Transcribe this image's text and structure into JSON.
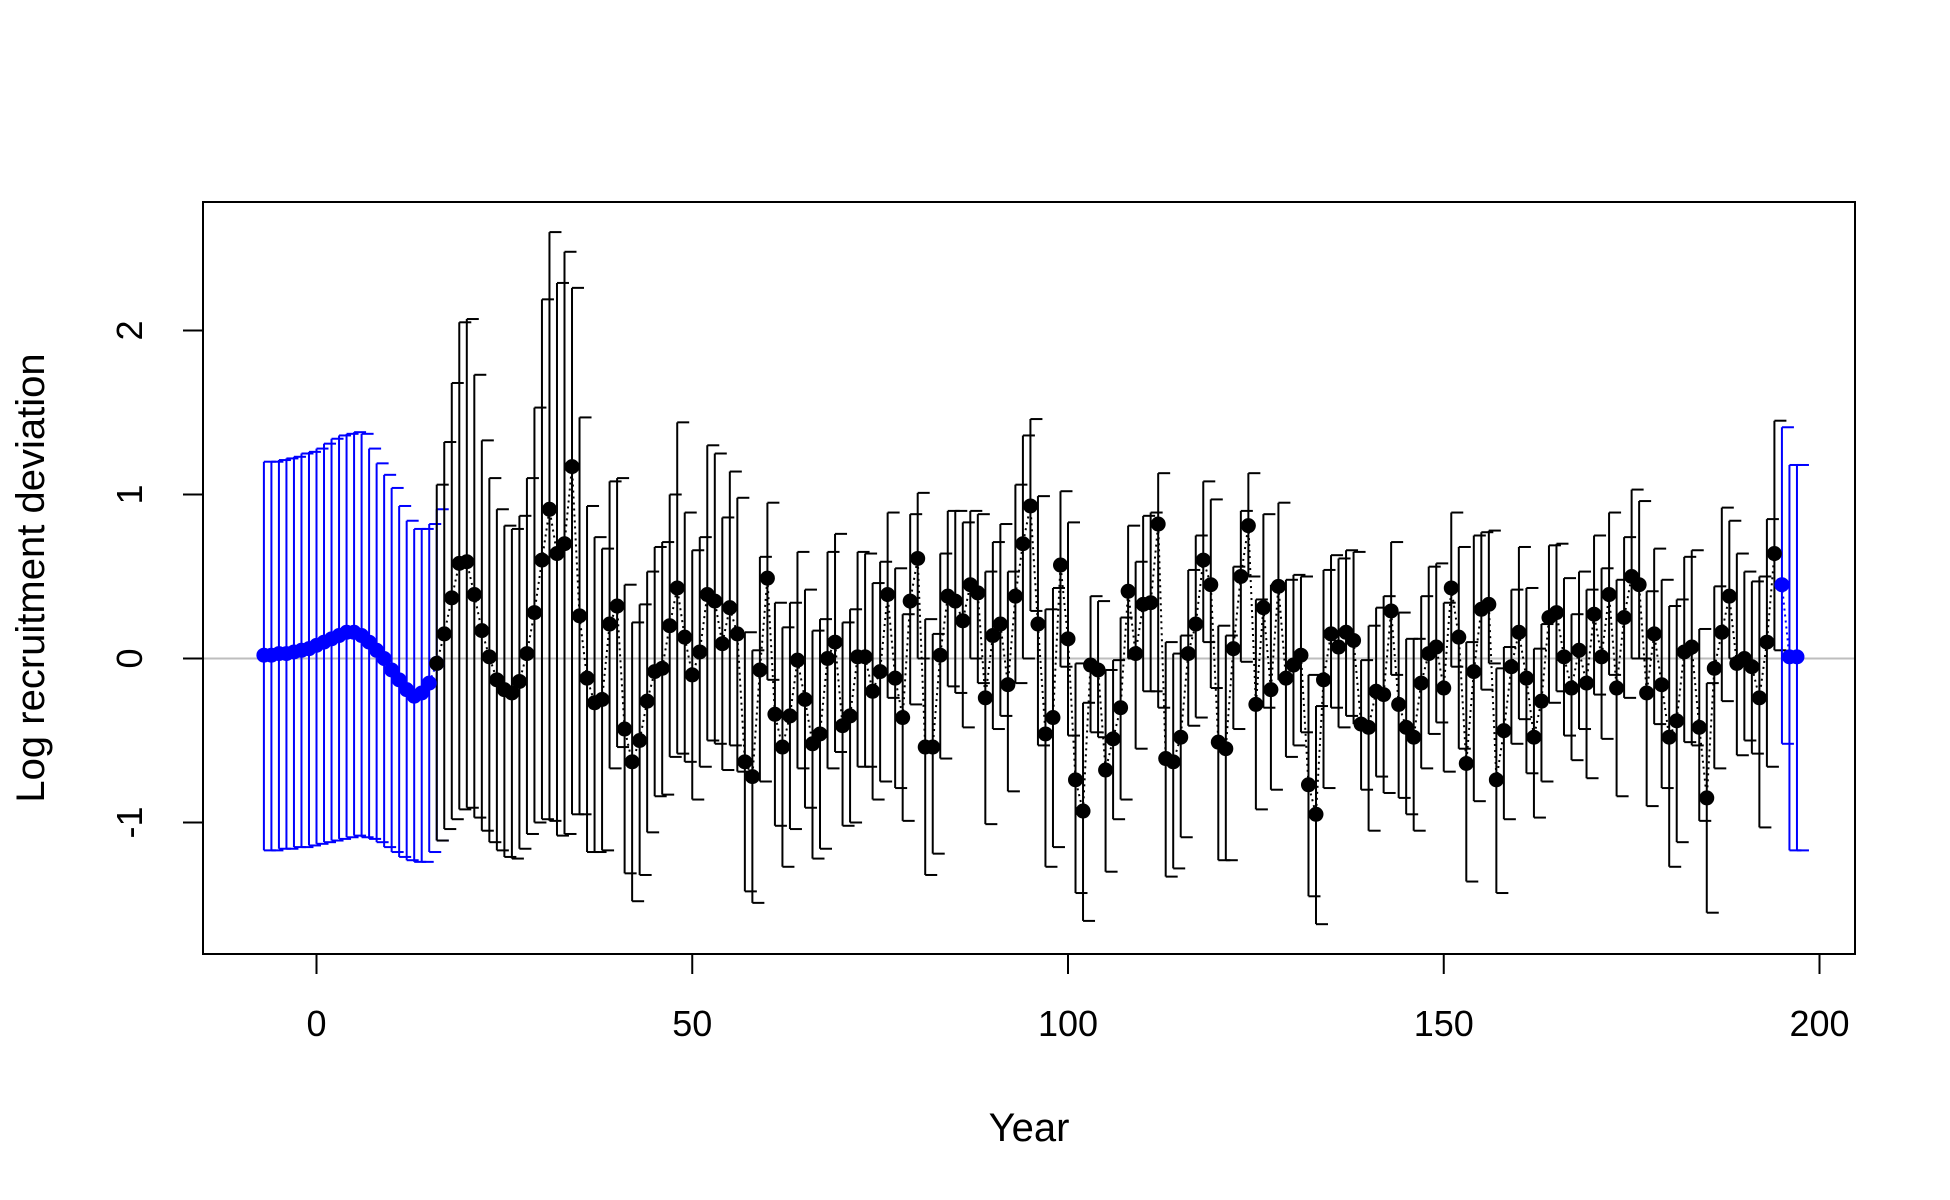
{
  "chart_data": {
    "type": "scatter",
    "title": "",
    "xlabel": "Year",
    "ylabel": "Log recruitment deviation",
    "xlim": [
      -15,
      205
    ],
    "ylim": [
      -1.8,
      2.8
    ],
    "x_ticks": [
      "0",
      "50",
      "100",
      "150",
      "200"
    ],
    "y_ticks": [
      "-1",
      "0",
      "1",
      "2"
    ],
    "reference_line": 0,
    "grid": false,
    "legend": "none",
    "colors": {
      "main": "#000000",
      "early_late": "#0000ff",
      "zero_line": "#bebebe"
    },
    "series": [
      {
        "part": "early",
        "x": [
          -7,
          -6,
          -5,
          -4,
          -3,
          -2,
          -1,
          0,
          1,
          2,
          3,
          4,
          5,
          6,
          7,
          8,
          9,
          10,
          11,
          12,
          13,
          14,
          15,
          16
        ],
        "y": [
          0.02,
          0.02,
          0.03,
          0.03,
          0.04,
          0.05,
          0.06,
          0.08,
          0.1,
          0.12,
          0.14,
          0.16,
          0.16,
          0.14,
          0.1,
          0.05,
          0.0,
          -0.07,
          -0.13,
          -0.19,
          -0.23,
          -0.21,
          -0.15,
          -0.03
        ],
        "lower": [
          -1.17,
          -1.17,
          -1.16,
          -1.16,
          -1.15,
          -1.15,
          -1.14,
          -1.13,
          -1.12,
          -1.11,
          -1.1,
          -1.09,
          -1.08,
          -1.09,
          -1.1,
          -1.12,
          -1.15,
          -1.18,
          -1.21,
          -1.23,
          -1.24,
          -1.24,
          -1.18,
          -1.11
        ],
        "upper": [
          1.2,
          1.2,
          1.21,
          1.22,
          1.23,
          1.25,
          1.26,
          1.28,
          1.31,
          1.34,
          1.36,
          1.37,
          1.38,
          1.37,
          1.28,
          1.19,
          1.12,
          1.04,
          0.93,
          0.84,
          0.79,
          0.79,
          0.82,
          0.91
        ]
      },
      {
        "part": "main",
        "x": [
          16,
          17,
          18,
          19,
          20,
          21,
          22,
          23,
          24,
          25,
          26,
          27,
          28,
          29,
          30,
          31,
          32,
          33,
          34,
          35,
          36,
          37,
          38,
          39,
          40,
          41,
          42,
          43,
          44,
          45,
          46,
          47,
          48,
          49,
          50,
          51,
          52,
          53,
          54,
          55,
          56,
          57,
          58,
          59,
          60,
          61,
          62,
          63,
          64,
          65,
          66,
          67,
          68,
          69,
          70,
          71,
          72,
          73,
          74,
          75,
          76,
          77,
          78,
          79,
          80,
          81,
          82,
          83,
          84,
          85,
          86,
          87,
          88,
          89,
          90,
          91,
          92,
          93,
          94,
          95,
          96,
          97,
          98,
          99,
          100,
          101,
          102,
          103,
          104,
          105,
          106,
          107,
          108,
          109,
          110,
          111,
          112,
          113,
          114,
          115,
          116,
          117,
          118,
          119,
          120,
          121,
          122,
          123,
          124,
          125,
          126,
          127,
          128,
          129,
          130,
          131,
          132,
          133,
          134,
          135,
          136,
          137,
          138,
          139,
          140,
          141,
          142,
          143,
          144,
          145,
          146,
          147,
          148,
          149,
          150,
          151,
          152,
          153,
          154,
          155,
          156,
          157,
          158,
          159,
          160,
          161,
          162,
          163,
          164,
          165,
          166,
          167,
          168,
          169,
          170,
          171,
          172,
          173,
          174,
          175,
          176,
          177,
          178,
          179,
          180,
          181,
          182,
          183,
          184,
          185,
          186,
          187,
          188,
          189,
          190,
          191,
          192,
          193,
          194
        ],
        "y": [
          -0.03,
          0.15,
          0.37,
          0.58,
          0.59,
          0.39,
          0.17,
          0.01,
          -0.13,
          -0.19,
          -0.21,
          -0.14,
          0.03,
          0.28,
          0.6,
          0.91,
          0.64,
          0.7,
          1.17,
          0.26,
          -0.12,
          -0.27,
          -0.25,
          0.21,
          0.32,
          -0.43,
          -0.63,
          -0.5,
          -0.26,
          -0.08,
          -0.06,
          0.2,
          0.43,
          0.13,
          -0.1,
          0.04,
          0.39,
          0.35,
          0.09,
          0.31,
          0.15,
          -0.63,
          -0.72,
          -0.07,
          0.49,
          -0.34,
          -0.54,
          -0.35,
          -0.01,
          -0.25,
          -0.52,
          -0.46,
          0.0,
          0.1,
          -0.41,
          -0.35,
          0.01,
          0.01,
          -0.2,
          -0.08,
          0.39,
          -0.12,
          -0.36,
          0.35,
          0.61,
          -0.54,
          -0.54,
          0.02,
          0.38,
          0.35,
          0.23,
          0.45,
          0.4,
          -0.24,
          0.14,
          0.21,
          -0.16,
          0.38,
          0.7,
          0.93,
          0.21,
          -0.46,
          -0.36,
          0.57,
          0.12,
          -0.74,
          -0.93,
          -0.04,
          -0.07,
          -0.68,
          -0.49,
          -0.3,
          0.41,
          0.03,
          0.33,
          0.34,
          0.82,
          -0.61,
          -0.63,
          -0.48,
          0.03,
          0.21,
          0.6,
          0.45,
          -0.51,
          -0.55,
          0.06,
          0.5,
          0.81,
          -0.28,
          0.31,
          -0.19,
          0.44,
          -0.12,
          -0.04,
          0.02,
          -0.77,
          -0.95,
          -0.13,
          0.15,
          0.07,
          0.16,
          0.11,
          -0.4,
          -0.42,
          -0.2,
          -0.22,
          0.29,
          -0.28,
          -0.42,
          -0.48,
          -0.15,
          0.03,
          0.07,
          -0.18,
          0.43,
          0.13,
          -0.64,
          -0.08,
          0.3,
          0.33,
          -0.74,
          -0.44,
          -0.05,
          0.16,
          -0.12,
          -0.48,
          -0.26,
          0.25,
          0.28,
          0.01,
          -0.18,
          0.05,
          -0.15,
          0.27,
          0.01,
          0.39,
          -0.18,
          0.25,
          0.5,
          0.45,
          -0.21,
          0.15,
          -0.16,
          -0.48,
          -0.38,
          0.04,
          0.07,
          -0.42,
          -0.85,
          -0.06,
          0.16,
          0.38,
          -0.03,
          0.0,
          -0.05,
          -0.24,
          0.1,
          0.64
        ],
        "lower": [
          -1.11,
          -1.04,
          -0.98,
          -0.92,
          -0.91,
          -0.97,
          -1.05,
          -1.12,
          -1.17,
          -1.21,
          -1.22,
          -1.16,
          -1.07,
          -1.0,
          -0.98,
          -0.99,
          -1.08,
          -1.07,
          -0.95,
          -0.95,
          -1.18,
          -1.18,
          -1.17,
          -0.67,
          -0.54,
          -1.31,
          -1.48,
          -1.32,
          -1.06,
          -0.84,
          -0.83,
          -0.6,
          -0.58,
          -0.63,
          -0.86,
          -0.66,
          -0.5,
          -0.52,
          -0.68,
          -0.53,
          -0.69,
          -1.42,
          -1.49,
          -0.75,
          -0.13,
          -1.02,
          -1.27,
          -1.04,
          -0.67,
          -0.91,
          -1.22,
          -1.16,
          -0.67,
          -0.57,
          -1.02,
          -1.0,
          -0.66,
          -0.66,
          -0.86,
          -0.75,
          -0.24,
          -0.79,
          -0.99,
          -0.28,
          0.0,
          -1.32,
          -1.19,
          -0.61,
          -0.17,
          -0.21,
          -0.42,
          0.0,
          -0.15,
          -1.01,
          -0.43,
          -0.35,
          -0.81,
          -0.15,
          0.0,
          0.29,
          -0.53,
          -1.27,
          -1.15,
          -0.05,
          -0.47,
          -1.43,
          -1.6,
          -0.45,
          -0.48,
          -1.3,
          -0.98,
          -0.86,
          0.0,
          -0.55,
          -0.2,
          -0.2,
          -0.3,
          -1.33,
          -1.28,
          -1.09,
          -0.41,
          -0.36,
          0.1,
          -0.18,
          -1.23,
          -1.23,
          -0.43,
          -0.02,
          0.5,
          -0.92,
          -0.3,
          -0.8,
          -0.13,
          -0.6,
          -0.53,
          -0.45,
          -1.45,
          -1.62,
          -0.79,
          -0.3,
          -0.42,
          -0.35,
          -0.4,
          -0.8,
          -1.05,
          -0.72,
          -0.82,
          -0.1,
          -0.85,
          -0.95,
          -1.05,
          -0.67,
          -0.46,
          -0.39,
          -0.69,
          -0.05,
          -0.55,
          -1.36,
          -0.87,
          -0.19,
          -0.03,
          -1.43,
          -0.98,
          -0.52,
          -0.37,
          -0.7,
          -0.97,
          -0.75,
          -0.27,
          -0.2,
          -0.47,
          -0.62,
          -0.43,
          -0.73,
          -0.22,
          -0.49,
          -0.1,
          -0.84,
          -0.24,
          0.0,
          0.0,
          -0.9,
          -0.4,
          -0.79,
          -1.27,
          -1.12,
          -0.51,
          -0.53,
          -0.99,
          -1.55,
          -0.67,
          -0.26,
          0.0,
          -0.59,
          -0.5,
          -0.58,
          -1.03,
          -0.66,
          0.05
        ],
        "upper": [
          1.06,
          1.32,
          1.68,
          2.05,
          2.07,
          1.73,
          1.33,
          1.1,
          0.91,
          0.81,
          0.79,
          0.87,
          1.1,
          1.53,
          2.19,
          2.6,
          2.29,
          2.48,
          2.26,
          1.47,
          0.93,
          0.74,
          0.67,
          1.08,
          1.1,
          0.45,
          0.22,
          0.33,
          0.53,
          0.68,
          0.71,
          1.0,
          1.44,
          0.89,
          0.66,
          0.74,
          1.3,
          1.25,
          0.86,
          1.14,
          0.98,
          0.16,
          0.05,
          0.62,
          0.95,
          0.34,
          0.19,
          0.34,
          0.65,
          0.42,
          0.17,
          0.24,
          0.65,
          0.76,
          0.22,
          0.3,
          0.65,
          0.64,
          0.46,
          0.59,
          0.89,
          0.55,
          0.27,
          0.88,
          1.01,
          0.24,
          0.15,
          0.64,
          0.9,
          0.9,
          0.83,
          0.9,
          0.88,
          0.53,
          0.71,
          0.82,
          0.53,
          1.06,
          1.36,
          1.46,
          0.99,
          0.3,
          0.43,
          1.02,
          0.83,
          -0.03,
          -0.27,
          0.38,
          0.35,
          -0.07,
          -0.01,
          0.25,
          0.81,
          0.59,
          0.87,
          0.89,
          1.13,
          0.1,
          0.03,
          0.14,
          0.54,
          0.75,
          1.08,
          0.97,
          0.2,
          0.14,
          0.56,
          0.9,
          1.13,
          0.36,
          0.88,
          0.45,
          0.95,
          0.48,
          0.51,
          0.5,
          -0.1,
          -0.29,
          0.54,
          0.63,
          0.61,
          0.66,
          0.65,
          -0.01,
          0.2,
          0.31,
          0.38,
          0.71,
          0.28,
          0.12,
          0.12,
          0.38,
          0.56,
          0.58,
          0.34,
          0.89,
          0.68,
          0.1,
          0.75,
          0.77,
          0.78,
          -0.06,
          0.07,
          0.42,
          0.68,
          0.43,
          0.06,
          0.21,
          0.69,
          0.7,
          0.49,
          0.27,
          0.53,
          0.42,
          0.75,
          0.55,
          0.89,
          0.48,
          0.74,
          1.03,
          0.96,
          0.41,
          0.67,
          0.48,
          0.32,
          0.36,
          0.62,
          0.66,
          0.18,
          -0.15,
          0.44,
          0.92,
          0.84,
          0.64,
          0.53,
          0.47,
          0.5,
          0.85,
          1.45
        ]
      },
      {
        "part": "late",
        "x": [
          195,
          196,
          197
        ],
        "y": [
          0.45,
          0.01,
          0.01
        ],
        "lower": [
          -0.52,
          -1.17,
          -1.17
        ],
        "upper": [
          1.41,
          1.18,
          1.18
        ]
      }
    ]
  }
}
